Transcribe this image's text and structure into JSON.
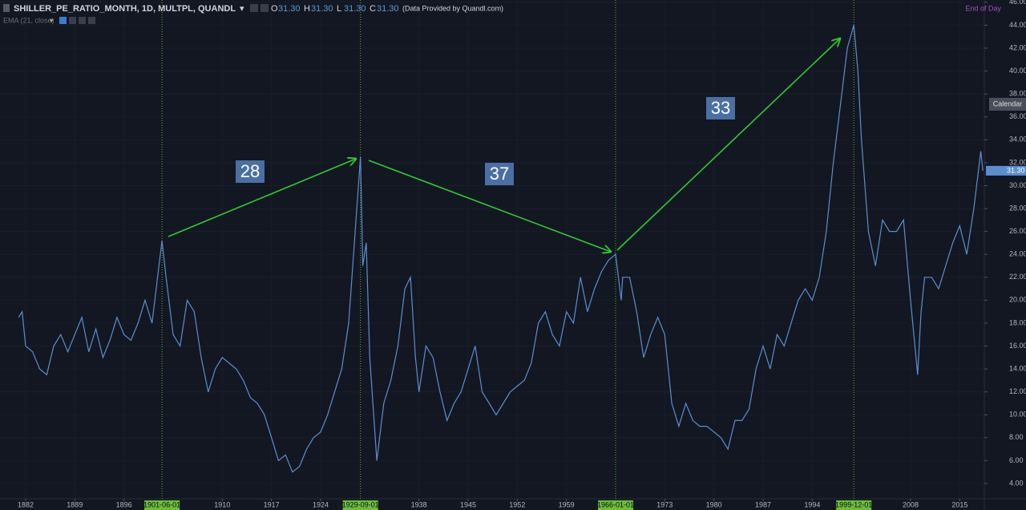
{
  "header": {
    "symbol": "SHILLER_PE_RATIO_MONTH, 1D, MULTPL, QUANDL",
    "ohlc": [
      {
        "key": "O",
        "value": "31.30"
      },
      {
        "key": "H",
        "value": "31.30"
      },
      {
        "key": "L",
        "value": "31.30"
      },
      {
        "key": "C",
        "value": "31.30"
      }
    ],
    "provider": "(Data Provided by Quandl.com)",
    "indicator": "EMA (21, close)",
    "session": "End of Day",
    "calendar": "Calendar"
  },
  "chart_data": {
    "type": "line",
    "x": [
      1881,
      1881.5,
      1882,
      1883,
      1884,
      1885,
      1886,
      1887,
      1888,
      1889,
      1890,
      1891,
      1892,
      1893,
      1894,
      1895,
      1896,
      1897,
      1898,
      1899,
      1900,
      1901.42,
      1902,
      1903,
      1904,
      1905,
      1906,
      1907,
      1908,
      1909,
      1910,
      1911,
      1912,
      1913,
      1914,
      1915,
      1916,
      1917,
      1918,
      1919,
      1920,
      1921,
      1922,
      1923,
      1924,
      1925,
      1926,
      1927,
      1928,
      1929.67,
      1930,
      1930.5,
      1931,
      1932,
      1933,
      1934,
      1935,
      1936,
      1936.8,
      1937.5,
      1938,
      1939,
      1940,
      1941,
      1942,
      1943,
      1944,
      1945,
      1946,
      1947,
      1948,
      1949,
      1950,
      1951,
      1952,
      1953,
      1954,
      1955,
      1956,
      1957,
      1958,
      1959,
      1960,
      1961,
      1962,
      1963,
      1964,
      1965,
      1966,
      1966.8,
      1967,
      1968,
      1969,
      1970,
      1971,
      1972,
      1973,
      1974,
      1975,
      1976,
      1977,
      1978,
      1979,
      1980,
      1981,
      1982,
      1983,
      1984,
      1985,
      1986,
      1987,
      1988,
      1989,
      1990,
      1991,
      1992,
      1993,
      1994,
      1995,
      1996,
      1997,
      1998,
      1999,
      1999.92,
      2000.5,
      2001,
      2002,
      2003,
      2004,
      2005,
      2006,
      2007,
      2008,
      2009,
      2009.5,
      2010,
      2011,
      2012,
      2013,
      2014,
      2015,
      2016,
      2017,
      2018,
      2018.3
    ],
    "series": [
      {
        "name": "SHILLER_PE_RATIO_MONTH",
        "color": "#5b8ed0",
        "values": [
          18.5,
          19,
          16,
          15.5,
          14,
          13.5,
          16,
          17,
          15.5,
          17,
          18.5,
          15.5,
          17.5,
          15,
          16.5,
          18.5,
          17,
          16.5,
          18,
          20,
          18,
          25.2,
          22,
          17,
          16,
          20,
          19,
          15,
          12,
          14,
          15,
          14.5,
          14,
          13,
          11.5,
          11,
          10,
          8,
          6,
          6.5,
          5,
          5.5,
          7,
          8,
          8.5,
          10,
          12,
          14,
          18,
          32.5,
          23,
          25,
          15,
          6,
          11,
          13,
          16,
          21,
          22,
          15,
          12,
          16,
          15,
          12,
          9.5,
          11,
          12,
          14,
          16,
          12,
          11,
          10,
          11,
          12,
          12.5,
          13,
          14.5,
          18,
          19,
          17,
          16,
          19,
          18,
          22,
          19,
          21,
          22.5,
          23.5,
          24,
          20,
          22,
          22,
          19,
          15,
          17,
          18.5,
          17,
          11,
          9,
          11,
          9.5,
          9,
          9,
          8.5,
          8,
          7,
          9.5,
          9.5,
          10.5,
          14,
          16,
          14,
          17,
          16,
          18,
          20,
          21,
          20,
          22,
          26,
          32,
          37,
          42,
          44,
          40,
          34,
          26,
          23,
          27,
          26,
          26,
          27,
          20,
          13.5,
          19,
          22,
          22,
          21,
          23,
          25,
          26.5,
          24,
          28,
          33,
          31.3
        ]
      }
    ],
    "xlim": [
      1878.35,
      2018.5
    ],
    "ylim": [
      2.67,
      46.2
    ],
    "xticks": [
      1882,
      1889,
      1896,
      1910,
      1917,
      1924,
      1938,
      1945,
      1952,
      1959,
      1973,
      1980,
      1987,
      1994,
      2008,
      2015
    ],
    "yticks": [
      {
        "value": 4,
        "label": "4.00"
      },
      {
        "value": 6,
        "label": "6.00"
      },
      {
        "value": 8,
        "label": "8.00"
      },
      {
        "value": 10,
        "label": "10.00"
      },
      {
        "value": 12,
        "label": "12.00"
      },
      {
        "value": 14,
        "label": "14.00"
      },
      {
        "value": 16,
        "label": "16.00"
      },
      {
        "value": 18,
        "label": "18.00"
      },
      {
        "value": 20,
        "label": "20.00"
      },
      {
        "value": 22,
        "label": "22.00"
      },
      {
        "value": 24,
        "label": "24.00"
      },
      {
        "value": 26,
        "label": "26.00"
      },
      {
        "value": 28,
        "label": "28.00"
      },
      {
        "value": 30,
        "label": "30.00"
      },
      {
        "value": 32,
        "label": "32.00"
      },
      {
        "value": 34,
        "label": "34.00"
      },
      {
        "value": 36,
        "label": "36.00"
      },
      {
        "value": 38,
        "label": "38.00"
      },
      {
        "value": 40,
        "label": "40.00"
      },
      {
        "value": 42,
        "label": "42.00"
      },
      {
        "value": 44,
        "label": "44.00"
      },
      {
        "value": 46,
        "label": "46.00"
      }
    ],
    "last_value": {
      "value": 31.3,
      "label": "31.30"
    },
    "markers": [
      {
        "x": 1901.42,
        "label": "1901-06-01"
      },
      {
        "x": 1929.67,
        "label": "1929-09-01"
      },
      {
        "x": 1966,
        "label": "1966-01-01"
      },
      {
        "x": 1999.92,
        "label": "1999-12-01"
      }
    ],
    "annotations": [
      "28",
      "37",
      "33"
    ],
    "grid": true
  }
}
